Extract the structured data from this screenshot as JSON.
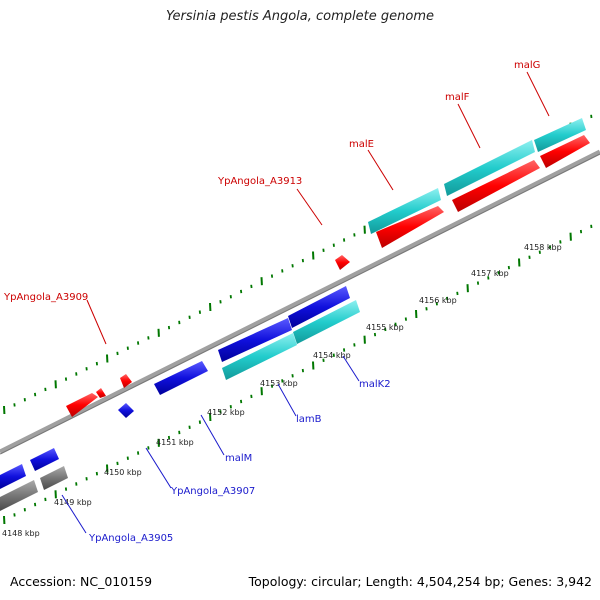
{
  "title": "Yersinia pestis Angola, complete genome",
  "footer": {
    "accession": "Accession: NC_010159",
    "summary": "Topology: circular; Length: 4,504,254 bp; Genes: 3,942"
  },
  "colors": {
    "forward_gene": "#ff0000",
    "reverse_gene": "#0000dd",
    "forward_cds_highlight": "#22cccc",
    "other_gene": "#777777",
    "backbone": "#999999",
    "tick": "#007700",
    "label_forward": "#cc0000",
    "label_reverse": "#1a1acc"
  },
  "tick_labels": [
    "4148 kbp",
    "4149 kbp",
    "4150 kbp",
    "4151 kbp",
    "4152 kbp",
    "4153 kbp",
    "4154 kbp",
    "4155 kbp",
    "4156 kbp",
    "4157 kbp",
    "4158 kbp"
  ],
  "forward_labels": [
    "YpAngola_A3909",
    "YpAngola_A3913",
    "malE",
    "malF",
    "malG"
  ],
  "reverse_labels": [
    "YpAngola_A3905",
    "YpAngola_A3907",
    "malM",
    "lamB",
    "malK2"
  ]
}
